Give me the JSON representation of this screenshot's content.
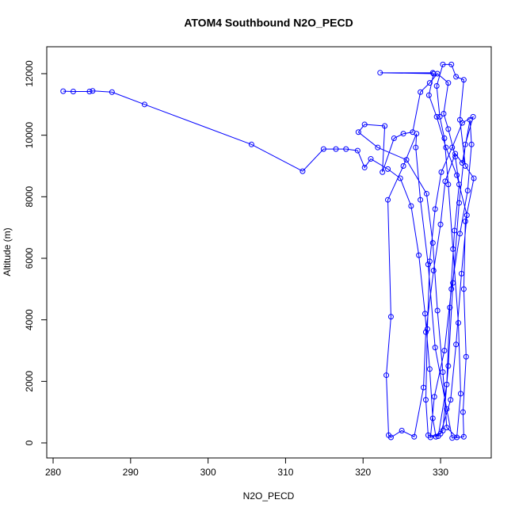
{
  "chart_data": {
    "type": "line",
    "title": "ATOM4 Southbound N2O_PECD",
    "x_label": "N2O_PECD",
    "y_label": "Altitude (m)",
    "color": "#0000ff",
    "markers": true,
    "x": [
      281.3,
      282.6,
      284.7,
      285.1,
      287.6,
      291.8,
      305.6,
      312.2,
      314.9,
      316.5,
      317.8,
      319.3,
      320.2,
      321.0,
      323.2,
      324.8,
      326.2,
      327.2,
      328.0,
      328.6,
      329.0,
      329.4,
      330.3,
      331.0,
      331.6,
      332.4,
      333.2,
      334.2,
      332.8,
      331.5,
      330.1,
      329.3,
      328.6,
      328.3,
      328.1,
      328.4,
      329.7,
      330.8,
      331.2,
      331.8,
      332.4,
      331.9,
      331.0,
      330.4,
      331.0,
      329.6,
      328.6,
      327.4,
      326.4,
      325.2,
      324.0,
      322.5,
      322.8,
      320.2,
      319.4,
      321.9,
      325.6,
      328.2,
      329.0,
      329.6,
      330.3,
      330.8,
      332.1,
      332.6,
      332.3,
      331.6,
      331.0,
      330.5,
      329.9,
      329.5,
      330.3,
      331.4,
      332.0,
      333.0,
      332.5,
      333.2,
      334.3,
      333.2,
      333.0,
      333.3,
      332.9,
      333.0,
      331.5,
      330.8,
      329.3,
      328.4,
      327.4,
      326.8,
      326.9,
      325.2,
      323.2,
      323.6,
      323.0,
      323.3,
      323.6,
      325.0,
      326.6,
      327.8,
      328.1,
      329.1,
      330.0,
      330.6,
      331.9,
      332.8,
      333.8,
      334.0,
      333.5,
      332.5,
      331.4,
      330.5,
      329.2,
      328.7,
      330.0,
      331.3,
      332.0,
      332.7,
      333.4,
      332.1,
      330.7,
      329.5,
      328.5,
      329.1,
      322.2,
      329.0
    ],
    "values": [
      11430,
      11420,
      11420,
      11440,
      11400,
      11000,
      9700,
      8830,
      9550,
      9550,
      9550,
      9500,
      8950,
      9230,
      8900,
      8600,
      7700,
      6100,
      4200,
      2400,
      800,
      200,
      400,
      2500,
      5200,
      7800,
      9700,
      10600,
      10400,
      9600,
      8800,
      7600,
      5900,
      3700,
      1400,
      250,
      220,
      1900,
      4400,
      6900,
      8400,
      9300,
      10200,
      10700,
      11700,
      12000,
      11700,
      11400,
      10100,
      10050,
      9900,
      8800,
      10300,
      10350,
      10100,
      9600,
      9200,
      8100,
      6500,
      4300,
      2300,
      500,
      180,
      1600,
      3900,
      6300,
      8400,
      9900,
      10600,
      11600,
      12300,
      12300,
      11900,
      11800,
      10500,
      9000,
      8600,
      7200,
      5000,
      2800,
      1000,
      200,
      160,
      1100,
      3100,
      5800,
      7900,
      9600,
      10050,
      9000,
      7900,
      4100,
      2200,
      250,
      180,
      400,
      200,
      1800,
      3600,
      5600,
      7100,
      8500,
      9400,
      9100,
      10500,
      9700,
      8200,
      6800,
      5000,
      3000,
      1500,
      180,
      300,
      1400,
      3200,
      5500,
      7400,
      8700,
      9600,
      10600,
      11300,
      12000,
      12030,
      12030
    ],
    "xlim": [
      279.18,
      336.54
    ],
    "ylim": [
      -489,
      12875
    ],
    "xticks": [
      280,
      290,
      300,
      310,
      320,
      330
    ],
    "yticks": [
      0,
      2000,
      4000,
      6000,
      8000,
      10000,
      12000
    ]
  }
}
